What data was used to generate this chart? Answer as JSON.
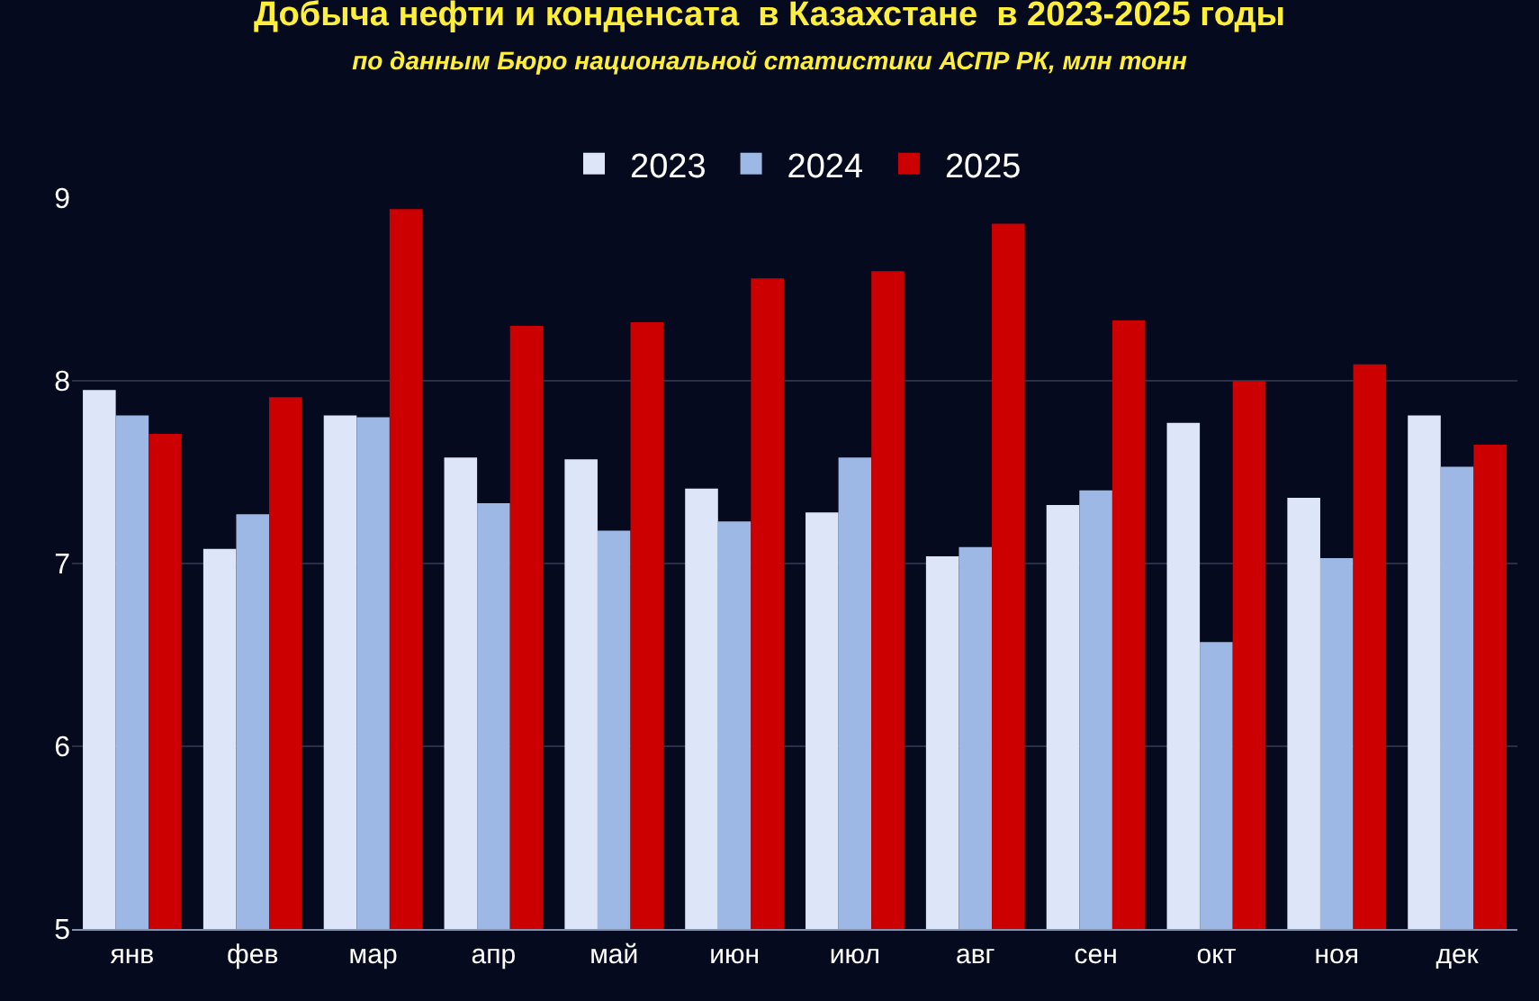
{
  "chart_data": {
    "type": "bar",
    "title": "Добыча нефти и конденсата  в Казахстане  в 2023-2025 годы",
    "subtitle": "по данным Бюро национальной статистики АСПР РК, млн тонн",
    "categories": [
      "янв",
      "фев",
      "мар",
      "апр",
      "май",
      "июн",
      "июл",
      "авг",
      "сен",
      "окт",
      "ноя",
      "дек"
    ],
    "series": [
      {
        "name": "2023",
        "color": "#dce6f8",
        "values": [
          7.95,
          7.08,
          7.81,
          7.58,
          7.57,
          7.41,
          7.28,
          7.04,
          7.32,
          7.77,
          7.36,
          7.81
        ]
      },
      {
        "name": "2024",
        "color": "#9db8e4",
        "values": [
          7.81,
          7.27,
          7.8,
          7.33,
          7.18,
          7.23,
          7.58,
          7.09,
          7.4,
          6.57,
          7.03,
          7.53
        ]
      },
      {
        "name": "2025",
        "color": "#cc0000",
        "values": [
          7.71,
          7.91,
          8.94,
          8.3,
          8.32,
          8.56,
          8.6,
          8.86,
          8.33,
          8.0,
          8.09,
          7.65
        ]
      }
    ],
    "ylim": [
      5,
      9
    ],
    "yticks": [
      5,
      6,
      7,
      8,
      9
    ],
    "grid": "y",
    "legend": "top"
  }
}
